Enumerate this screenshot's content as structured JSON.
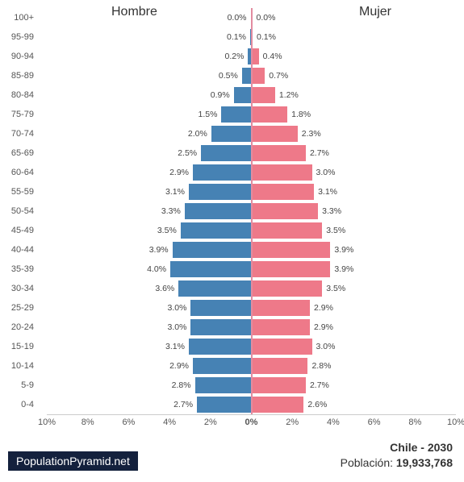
{
  "chart": {
    "type": "population-pyramid",
    "male_label": "Hombre",
    "female_label": "Mujer",
    "male_color": "#4682b4",
    "female_color": "#ee7989",
    "center_line_color": "#e28ca0",
    "background_color": "#ffffff",
    "value_suffix": "%",
    "x_max_pct": 10,
    "x_ticks": [
      "10%",
      "8%",
      "6%",
      "4%",
      "2%",
      "0%",
      "2%",
      "4%",
      "6%",
      "8%",
      "10%"
    ],
    "age_labels": [
      "100+",
      "95-99",
      "90-94",
      "85-89",
      "80-84",
      "75-79",
      "70-74",
      "65-69",
      "60-64",
      "55-59",
      "50-54",
      "45-49",
      "40-44",
      "35-39",
      "30-34",
      "25-29",
      "20-24",
      "15-19",
      "10-14",
      "5-9",
      "0-4"
    ],
    "male": [
      0.0,
      0.1,
      0.2,
      0.5,
      0.9,
      1.5,
      2.0,
      2.5,
      2.9,
      3.1,
      3.3,
      3.5,
      3.9,
      4.0,
      3.6,
      3.0,
      3.0,
      3.1,
      2.9,
      2.8,
      2.7
    ],
    "female": [
      0.0,
      0.1,
      0.4,
      0.7,
      1.2,
      1.8,
      2.3,
      2.7,
      3.0,
      3.1,
      3.3,
      3.5,
      3.9,
      3.9,
      3.5,
      2.9,
      2.9,
      3.0,
      2.8,
      2.7,
      2.6
    ]
  },
  "footer": {
    "site": "PopulationPyramid.net",
    "country_year": "Chile - 2030",
    "population_label": "Población: ",
    "population_value": "19,933,768"
  }
}
